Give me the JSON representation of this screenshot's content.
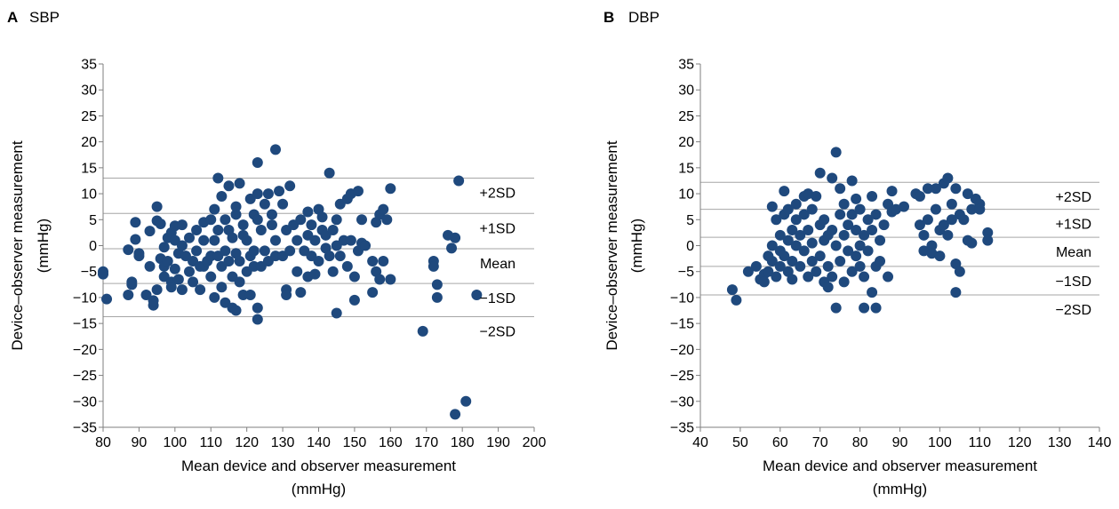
{
  "colors": {
    "marker": "#1f497d",
    "reference_line": "#a6a6a6",
    "axis": "#7f7f7f"
  },
  "chart_data": [
    {
      "type": "scatter",
      "panel_letter": "A",
      "title": "SBP",
      "xlabel_lines": [
        "Mean device and observer measurement",
        "(mmHg)"
      ],
      "ylabel_lines": [
        "Device–observer measurement",
        "(mmHg)"
      ],
      "xlim": [
        80,
        200
      ],
      "ylim": [
        -35,
        35
      ],
      "x_ticks": [
        80,
        90,
        100,
        110,
        120,
        130,
        140,
        150,
        160,
        170,
        180,
        190,
        200
      ],
      "y_ticks": [
        35,
        30,
        25,
        20,
        15,
        10,
        5,
        0,
        -5,
        -10,
        -15,
        -20,
        -25,
        -30,
        -35
      ],
      "y_tick_labels": [
        "35",
        "30",
        "25",
        "20",
        "15",
        "10",
        "5",
        "0",
        "−5",
        "−10",
        "−15",
        "−20",
        "−25",
        "−30",
        "−35"
      ],
      "grid": false,
      "reference_lines": [
        {
          "label": "+2SD",
          "y": 13.0
        },
        {
          "label": "+1SD",
          "y": 6.2
        },
        {
          "label": "Mean",
          "y": -0.6
        },
        {
          "label": "−1SD",
          "y": -7.3
        },
        {
          "label": "−2SD",
          "y": -13.7
        }
      ],
      "points": [
        [
          80,
          -5
        ],
        [
          80,
          -5.5
        ],
        [
          81,
          -10.3
        ],
        [
          87,
          -0.8
        ],
        [
          87,
          -9.5
        ],
        [
          88,
          -7
        ],
        [
          88,
          -7.5
        ],
        [
          89,
          4.5
        ],
        [
          89,
          1.2
        ],
        [
          90,
          -1.5
        ],
        [
          90,
          -2
        ],
        [
          92,
          -9.5
        ],
        [
          93,
          -4
        ],
        [
          93,
          2.8
        ],
        [
          94,
          -11.5
        ],
        [
          94,
          -10.6
        ],
        [
          95,
          7.5
        ],
        [
          95,
          -8.5
        ],
        [
          95,
          4.8
        ],
        [
          96,
          -2.5
        ],
        [
          96,
          4.2
        ],
        [
          97,
          -4
        ],
        [
          97,
          -6
        ],
        [
          97,
          -0.3
        ],
        [
          98,
          1.5
        ],
        [
          98,
          -3
        ],
        [
          99,
          -7
        ],
        [
          99,
          2.5
        ],
        [
          99,
          -8
        ],
        [
          100,
          -4.5
        ],
        [
          100,
          1
        ],
        [
          100,
          3.8
        ],
        [
          101,
          -1.5
        ],
        [
          101,
          -6.5
        ],
        [
          102,
          0
        ],
        [
          102,
          -8.5
        ],
        [
          102,
          4
        ],
        [
          103,
          -2
        ],
        [
          104,
          -5
        ],
        [
          104,
          1.5
        ],
        [
          105,
          -7
        ],
        [
          105,
          -3
        ],
        [
          106,
          3
        ],
        [
          106,
          -1
        ],
        [
          107,
          -4
        ],
        [
          107,
          -8.5
        ],
        [
          108,
          4.5
        ],
        [
          108,
          -4
        ],
        [
          108,
          1
        ],
        [
          109,
          -3
        ],
        [
          110,
          -2
        ],
        [
          110,
          5
        ],
        [
          110,
          -6
        ],
        [
          111,
          1
        ],
        [
          111,
          -10
        ],
        [
          111,
          7
        ],
        [
          112,
          13
        ],
        [
          112,
          3
        ],
        [
          112,
          -2
        ],
        [
          113,
          -4
        ],
        [
          113,
          -8
        ],
        [
          113,
          9.5
        ],
        [
          114,
          -11
        ],
        [
          114,
          5
        ],
        [
          114,
          -1
        ],
        [
          115,
          11.5
        ],
        [
          115,
          -3
        ],
        [
          115,
          3
        ],
        [
          116,
          -12
        ],
        [
          116,
          -6
        ],
        [
          116,
          1.5
        ],
        [
          117,
          -12.5
        ],
        [
          117,
          6
        ],
        [
          117,
          7.5
        ],
        [
          117,
          -1.5
        ],
        [
          118,
          12
        ],
        [
          118,
          -7
        ],
        [
          118,
          -3
        ],
        [
          119,
          -9.5
        ],
        [
          119,
          2
        ],
        [
          119,
          4
        ],
        [
          120,
          -5
        ],
        [
          120,
          1
        ],
        [
          121,
          9
        ],
        [
          121,
          -2
        ],
        [
          121,
          -9.5
        ],
        [
          122,
          6
        ],
        [
          122,
          -1
        ],
        [
          122,
          -4
        ],
        [
          123,
          16
        ],
        [
          123,
          -14.2
        ],
        [
          123,
          -12
        ],
        [
          123,
          5
        ],
        [
          123,
          10
        ],
        [
          124,
          -4
        ],
        [
          124,
          3
        ],
        [
          125,
          8
        ],
        [
          125,
          -1
        ],
        [
          126,
          10
        ],
        [
          126,
          -3
        ],
        [
          127,
          4
        ],
        [
          127,
          6
        ],
        [
          128,
          18.5
        ],
        [
          128,
          -2
        ],
        [
          128,
          1
        ],
        [
          129,
          10.5
        ],
        [
          130,
          -2
        ],
        [
          130,
          8
        ],
        [
          131,
          -8.5
        ],
        [
          131,
          -9.5
        ],
        [
          131,
          3
        ],
        [
          132,
          11.5
        ],
        [
          132,
          -1
        ],
        [
          133,
          4
        ],
        [
          134,
          -5
        ],
        [
          134,
          1
        ],
        [
          135,
          -9
        ],
        [
          135,
          5
        ],
        [
          136,
          -1
        ],
        [
          137,
          -6
        ],
        [
          137,
          2
        ],
        [
          137,
          6.5
        ],
        [
          138,
          -2
        ],
        [
          138,
          4
        ],
        [
          139,
          -5.5
        ],
        [
          139,
          1
        ],
        [
          140,
          7
        ],
        [
          140,
          -3
        ],
        [
          141,
          3
        ],
        [
          141,
          5.5
        ],
        [
          142,
          -0.5
        ],
        [
          142,
          2
        ],
        [
          143,
          -2
        ],
        [
          143,
          14
        ],
        [
          144,
          -5
        ],
        [
          144,
          3
        ],
        [
          145,
          0
        ],
        [
          145,
          5
        ],
        [
          145,
          -13
        ],
        [
          146,
          8
        ],
        [
          146,
          -2
        ],
        [
          147,
          1
        ],
        [
          148,
          9
        ],
        [
          148,
          -4
        ],
        [
          149,
          10
        ],
        [
          149,
          1
        ],
        [
          150,
          -10.5
        ],
        [
          150,
          -6
        ],
        [
          151,
          10.5
        ],
        [
          151,
          -1
        ],
        [
          152,
          0.5
        ],
        [
          152,
          5
        ],
        [
          153,
          0
        ],
        [
          155,
          -9
        ],
        [
          155,
          -3
        ],
        [
          156,
          4.5
        ],
        [
          156,
          -5
        ],
        [
          157,
          6
        ],
        [
          157,
          -6.5
        ],
        [
          158,
          -3
        ],
        [
          158,
          7
        ],
        [
          159,
          5
        ],
        [
          160,
          11
        ],
        [
          160,
          -6.5
        ],
        [
          169,
          -16.5
        ],
        [
          172,
          -3
        ],
        [
          172,
          -4
        ],
        [
          173,
          -7.5
        ],
        [
          173,
          -10
        ],
        [
          176,
          2
        ],
        [
          177,
          -0.5
        ],
        [
          178,
          -32.5
        ],
        [
          178,
          1.5
        ],
        [
          179,
          12.5
        ],
        [
          181,
          -30
        ],
        [
          184,
          -9.5
        ]
      ]
    },
    {
      "type": "scatter",
      "panel_letter": "B",
      "title": "DBP",
      "xlabel_lines": [
        "Mean device and observer measurement",
        "(mmHg)"
      ],
      "ylabel_lines": [
        "Device–observer measurement",
        "(mmHg)"
      ],
      "xlim": [
        40,
        140
      ],
      "ylim": [
        -35,
        35
      ],
      "x_ticks": [
        40,
        50,
        60,
        70,
        80,
        90,
        100,
        110,
        120,
        130,
        140
      ],
      "y_ticks": [
        35,
        30,
        25,
        20,
        15,
        10,
        5,
        0,
        -5,
        -10,
        -15,
        -20,
        -25,
        -30,
        -35
      ],
      "y_tick_labels": [
        "35",
        "30",
        "25",
        "20",
        "15",
        "10",
        "5",
        "0",
        "−5",
        "−10",
        "−15",
        "−20",
        "−25",
        "−30",
        "−35"
      ],
      "grid": false,
      "reference_lines": [
        {
          "label": "+2SD",
          "y": 12.2
        },
        {
          "label": "+1SD",
          "y": 7.0
        },
        {
          "label": "Mean",
          "y": 1.6
        },
        {
          "label": "−1SD",
          "y": -4.0
        },
        {
          "label": "−2SD",
          "y": -9.5
        }
      ],
      "points": [
        [
          48,
          -8.5
        ],
        [
          49,
          -10.5
        ],
        [
          52,
          -5
        ],
        [
          54,
          -4
        ],
        [
          55,
          -6.5
        ],
        [
          56,
          -5.5
        ],
        [
          56,
          -7
        ],
        [
          57,
          -2
        ],
        [
          57,
          -5
        ],
        [
          58,
          0
        ],
        [
          58,
          -3
        ],
        [
          58,
          7.5
        ],
        [
          59,
          5
        ],
        [
          59,
          -6
        ],
        [
          60,
          2
        ],
        [
          60,
          -1
        ],
        [
          60,
          -4
        ],
        [
          61,
          10.5
        ],
        [
          61,
          6
        ],
        [
          61,
          -2
        ],
        [
          62,
          1
        ],
        [
          62,
          -5
        ],
        [
          62,
          7
        ],
        [
          63,
          3
        ],
        [
          63,
          -3
        ],
        [
          63,
          -6.5
        ],
        [
          64,
          8
        ],
        [
          64,
          0
        ],
        [
          64,
          5
        ],
        [
          65,
          -4
        ],
        [
          65,
          2
        ],
        [
          66,
          6
        ],
        [
          66,
          -1
        ],
        [
          66,
          9.5
        ],
        [
          67,
          10
        ],
        [
          67,
          -6
        ],
        [
          67,
          3
        ],
        [
          68,
          -3
        ],
        [
          68,
          7
        ],
        [
          68,
          0.5
        ],
        [
          69,
          9.5
        ],
        [
          69,
          -5
        ],
        [
          70,
          4
        ],
        [
          70,
          -2
        ],
        [
          70,
          14
        ],
        [
          71,
          -7
        ],
        [
          71,
          1
        ],
        [
          71,
          5
        ],
        [
          72,
          -8
        ],
        [
          72,
          -4
        ],
        [
          72,
          2
        ],
        [
          73,
          -6
        ],
        [
          73,
          13
        ],
        [
          73,
          3
        ],
        [
          74,
          18
        ],
        [
          74,
          -12
        ],
        [
          74,
          0
        ],
        [
          75,
          6
        ],
        [
          75,
          -3
        ],
        [
          75,
          11
        ],
        [
          76,
          -7
        ],
        [
          76,
          2
        ],
        [
          76,
          8
        ],
        [
          77,
          -1
        ],
        [
          77,
          4
        ],
        [
          78,
          12.5
        ],
        [
          78,
          -5
        ],
        [
          78,
          6
        ],
        [
          79,
          -2
        ],
        [
          79,
          9
        ],
        [
          79,
          3
        ],
        [
          80,
          -4
        ],
        [
          80,
          7
        ],
        [
          80,
          0
        ],
        [
          81,
          -12
        ],
        [
          81,
          -6
        ],
        [
          81,
          2
        ],
        [
          82,
          5
        ],
        [
          82,
          -1
        ],
        [
          83,
          9.5
        ],
        [
          83,
          -9
        ],
        [
          83,
          3
        ],
        [
          84,
          -12
        ],
        [
          84,
          -4
        ],
        [
          84,
          6
        ],
        [
          85,
          1
        ],
        [
          85,
          -3
        ],
        [
          86,
          4
        ],
        [
          87,
          -6
        ],
        [
          87,
          8
        ],
        [
          88,
          10.5
        ],
        [
          88,
          6.5
        ],
        [
          89,
          7
        ],
        [
          91,
          7.5
        ],
        [
          94,
          10
        ],
        [
          95,
          9.5
        ],
        [
          95,
          4
        ],
        [
          96,
          -1
        ],
        [
          96,
          2
        ],
        [
          97,
          11
        ],
        [
          97,
          5
        ],
        [
          98,
          0
        ],
        [
          98,
          -1.5
        ],
        [
          99,
          7
        ],
        [
          99,
          11
        ],
        [
          100,
          3
        ],
        [
          100,
          -2
        ],
        [
          101,
          4
        ],
        [
          101,
          12
        ],
        [
          102,
          13
        ],
        [
          102,
          2
        ],
        [
          103,
          8
        ],
        [
          103,
          5
        ],
        [
          104,
          -3.5
        ],
        [
          104,
          11
        ],
        [
          104,
          -9
        ],
        [
          105,
          6
        ],
        [
          105,
          -5
        ],
        [
          106,
          5
        ],
        [
          107,
          1
        ],
        [
          107,
          10
        ],
        [
          108,
          7
        ],
        [
          108,
          0.5
        ],
        [
          109,
          9
        ],
        [
          110,
          8
        ],
        [
          110,
          7
        ],
        [
          112,
          2.5
        ],
        [
          112,
          1
        ]
      ]
    }
  ]
}
